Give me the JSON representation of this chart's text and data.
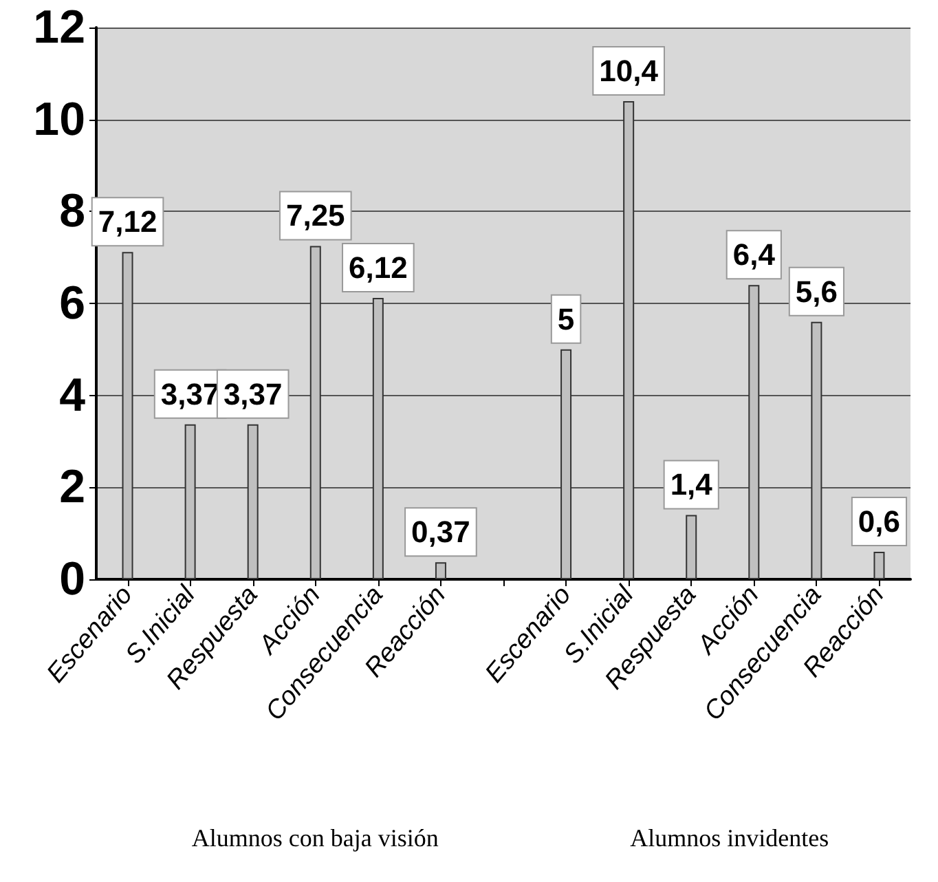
{
  "chart_data": {
    "type": "bar",
    "categories": [
      "Escenario",
      "S.Inicial",
      "Respuesta",
      "Acción",
      "Consecuencia",
      "Reacción",
      null,
      "Escenario",
      "S.Inicial",
      "Respuesta",
      "Acción",
      "Consecuencia",
      "Reacción"
    ],
    "values": [
      7.12,
      3.37,
      3.37,
      7.25,
      6.12,
      0.37,
      null,
      5,
      10.4,
      1.4,
      6.4,
      5.6,
      0.6
    ],
    "value_labels": [
      "7,12",
      "3,37",
      "3,37",
      "7,25",
      "6,12",
      "0,37",
      null,
      "5",
      "10,4",
      "1,4",
      "6,4",
      "5,6",
      "0,6"
    ],
    "color": "#c0c0c0",
    "ylim": [
      0,
      12
    ],
    "yticks": [
      0,
      2,
      4,
      6,
      8,
      10,
      12
    ],
    "grid": "y",
    "annotations": [
      "Alumnos con baja visión",
      "Alumnos invidentes"
    ]
  }
}
